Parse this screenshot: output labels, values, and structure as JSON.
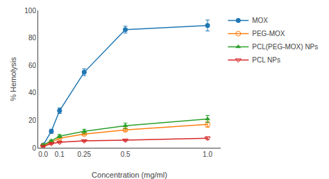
{
  "chart_data": {
    "type": "line",
    "x": [
      0.0,
      0.05,
      0.1,
      0.25,
      0.5,
      1.0
    ],
    "series": [
      {
        "name": "MOX",
        "marker": "circle",
        "values": [
          2.0,
          12.0,
          27.0,
          55.0,
          86.0,
          89.0
        ],
        "errors": [
          0.5,
          1.5,
          2.0,
          2.5,
          2.5,
          4.0
        ]
      },
      {
        "name": "PEG-MOX",
        "marker": "circle-open",
        "values": [
          1.5,
          4.0,
          7.0,
          10.0,
          13.0,
          17.0
        ],
        "errors": [
          0.3,
          0.5,
          0.8,
          0.8,
          1.0,
          2.0
        ]
      },
      {
        "name": "PCL(PEG-MOX) NPs",
        "marker": "triangle-up",
        "values": [
          2.0,
          5.0,
          8.5,
          12.0,
          16.0,
          21.0
        ],
        "errors": [
          0.4,
          0.7,
          1.2,
          1.5,
          2.0,
          2.5
        ]
      },
      {
        "name": "PCL NPs",
        "marker": "triangle-down-open",
        "values": [
          1.0,
          3.0,
          4.0,
          5.0,
          5.5,
          7.0
        ],
        "errors": [
          0.3,
          0.4,
          0.5,
          0.6,
          0.7,
          1.0
        ]
      }
    ],
    "xlabel": "Concentration (mg/ml)",
    "ylabel": "% Hemolysis",
    "xlim": [
      -0.03,
      1.08
    ],
    "ylim": [
      0,
      100
    ],
    "xticks": [
      {
        "value": 0.0,
        "label": "0.0"
      },
      0.1,
      0.25,
      0.5,
      {
        "value": 1.0,
        "label": "1.0"
      }
    ],
    "yticks": [
      0,
      20,
      40,
      60,
      80,
      100
    ],
    "legend": "upper right",
    "grid": false
  }
}
